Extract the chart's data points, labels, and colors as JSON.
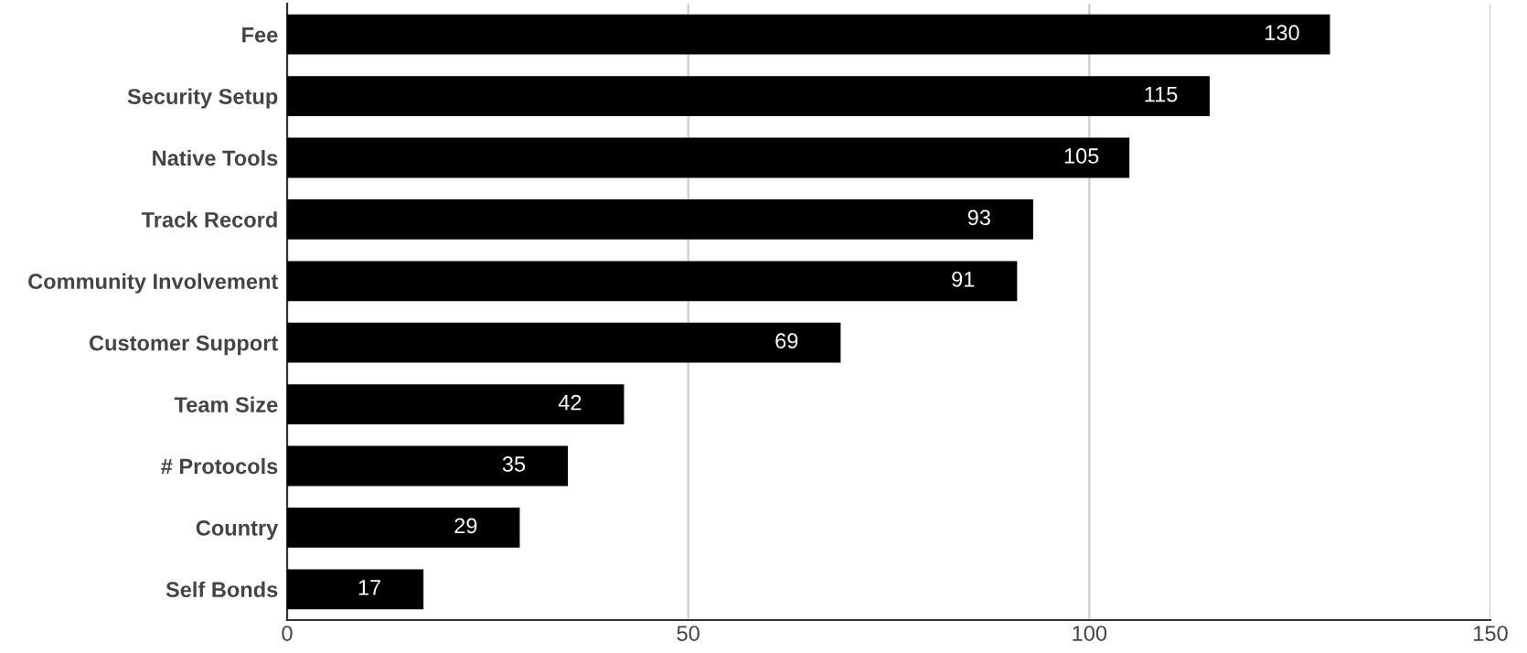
{
  "chart_data": {
    "type": "bar",
    "orientation": "horizontal",
    "categories": [
      "Fee",
      "Security Setup",
      "Native Tools",
      "Track Record",
      "Community Involvement",
      "Customer Support",
      "Team Size",
      "# Protocols",
      "Country",
      "Self Bonds"
    ],
    "values": [
      130,
      115,
      105,
      93,
      91,
      69,
      42,
      35,
      29,
      17
    ],
    "color": "#000000",
    "xlim": [
      0,
      150
    ],
    "xticks": [
      0,
      50,
      100,
      150
    ],
    "grid": "x",
    "data_labels": true,
    "legend": false
  }
}
